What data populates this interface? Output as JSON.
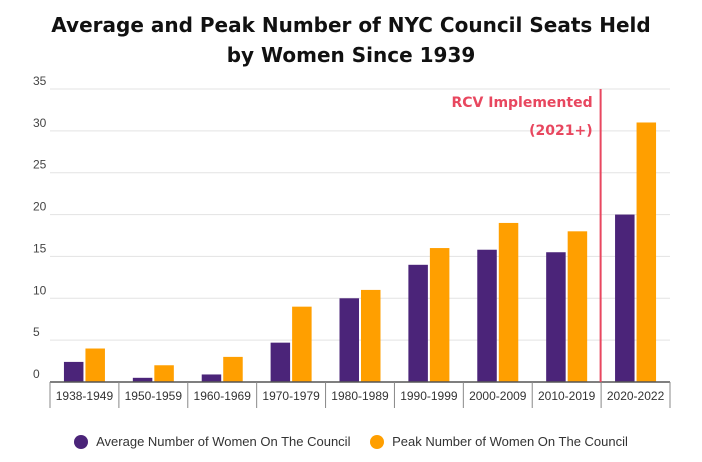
{
  "chart_data": {
    "type": "bar",
    "title_line1": "Average and Peak Number of NYC Council Seats Held",
    "title_line2": "by Women Since 1939",
    "categories": [
      "1938-1949",
      "1950-1959",
      "1960-1969",
      "1970-1979",
      "1980-1989",
      "1990-1999",
      "2000-2009",
      "2010-2019",
      "2020-2022"
    ],
    "series": [
      {
        "name": "Average Number of Women On The Council",
        "color": "#4b2479",
        "values": [
          2.4,
          0.5,
          0.9,
          4.7,
          10,
          14,
          15.8,
          15.5,
          20
        ]
      },
      {
        "name": "Peak Number of Women On The Council",
        "color": "#ff9f00",
        "values": [
          4,
          2,
          3,
          9,
          11,
          16,
          19,
          18,
          31
        ]
      }
    ],
    "ylim": [
      0,
      35
    ],
    "yticks": [
      0,
      5,
      10,
      15,
      20,
      25,
      30,
      35
    ],
    "grid": true,
    "legend": "bottom",
    "annotation": {
      "line1": "RCV Implemented",
      "line2": "(2021+)",
      "color": "#e8475f",
      "position": "between 2010-2019 and 2020-2022"
    }
  }
}
